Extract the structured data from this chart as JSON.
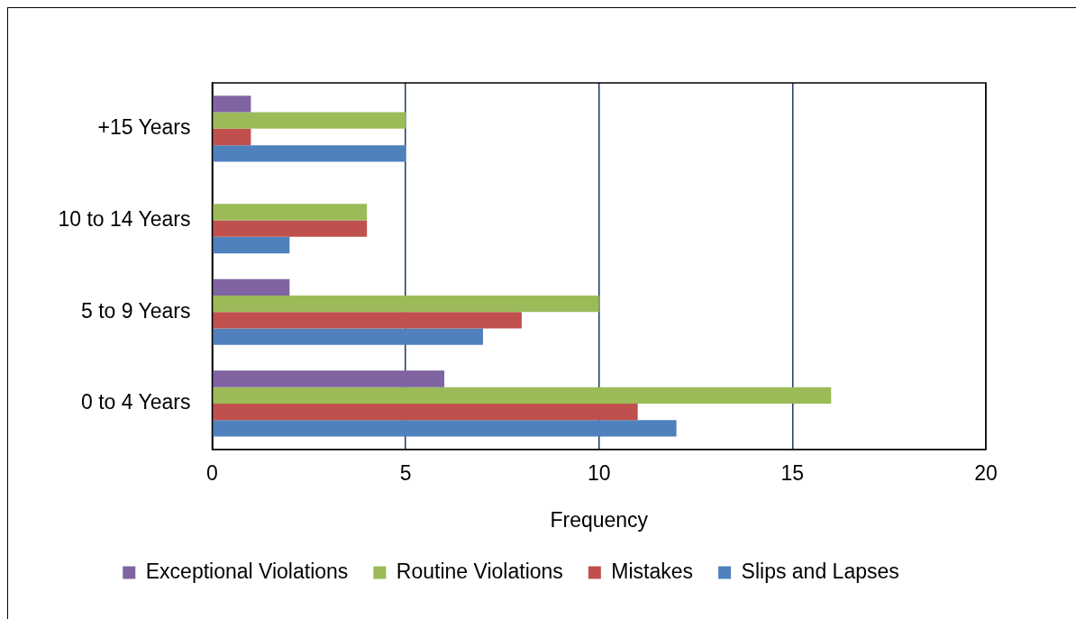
{
  "chart_data": {
    "type": "bar",
    "orientation": "horizontal",
    "xlabel": "Frequency",
    "categories": [
      "+15 Years",
      "10 to 14 Years",
      "5 to 9 Years",
      "0 to 4 Years"
    ],
    "series": [
      {
        "name": "Exceptional Violations",
        "color": "#8064a2",
        "values": [
          1,
          0,
          2,
          6
        ]
      },
      {
        "name": "Routine Violations",
        "color": "#9bbb59",
        "values": [
          5,
          4,
          10,
          16
        ]
      },
      {
        "name": "Mistakes",
        "color": "#c0504d",
        "values": [
          1,
          4,
          8,
          11
        ]
      },
      {
        "name": "Slips and Lapses",
        "color": "#4f81bd",
        "values": [
          5,
          2,
          7,
          12
        ]
      }
    ],
    "xlim": [
      0,
      20
    ],
    "xticks": [
      0,
      5,
      10,
      15,
      20
    ],
    "grid": "x",
    "legend": "bottom"
  }
}
